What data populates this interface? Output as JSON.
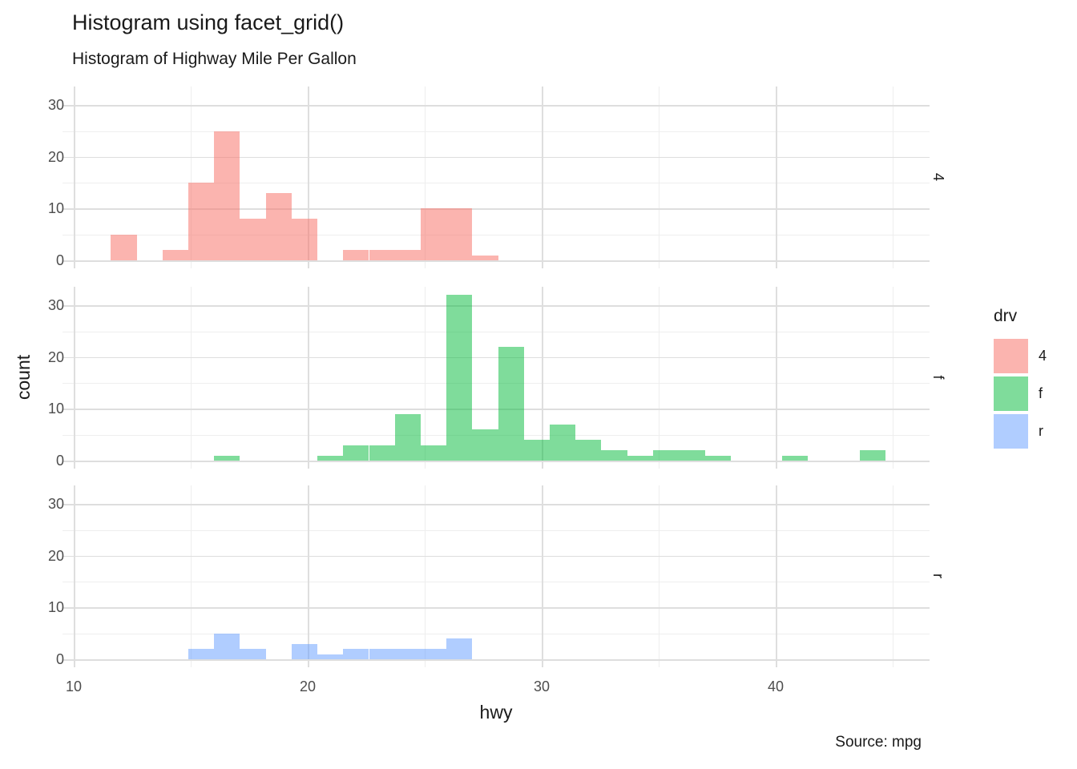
{
  "title": "Histogram using facet_grid()",
  "subtitle": "Histogram of Highway Mile Per Gallon",
  "caption": "Source: mpg",
  "x_axis": {
    "label": "hwy",
    "tick_labels": [
      "10",
      "20",
      "30",
      "40"
    ]
  },
  "y_axis": {
    "label": "count",
    "tick_labels": [
      "0",
      "10",
      "20",
      "30"
    ]
  },
  "facets": [
    {
      "label": "4"
    },
    {
      "label": "f"
    },
    {
      "label": "r"
    }
  ],
  "legend": {
    "title": "drv",
    "entries": [
      {
        "label": "4",
        "color": "rgba(248,118,109,0.55)"
      },
      {
        "label": "f",
        "color": "rgba(0,186,56,0.5)"
      },
      {
        "label": "r",
        "color": "rgba(97,156,255,0.5)"
      }
    ]
  },
  "colors": {
    "major_grid": "#DEDEDE",
    "minor_grid": "#EEEEEE",
    "tick_text": "#4D4D4D"
  },
  "chart_data": {
    "type": "bar",
    "subtype": "faceted-histogram",
    "title": "Histogram using facet_grid()",
    "subtitle": "Histogram of Highway Mile Per Gallon",
    "xlabel": "hwy",
    "ylabel": "count",
    "facet_variable": "drv",
    "x_ticks": [
      10,
      20,
      30,
      40
    ],
    "x_minor": [
      15,
      25,
      35,
      45
    ],
    "y_ticks": [
      0,
      10,
      20,
      30
    ],
    "y_minor": [
      5,
      15,
      25
    ],
    "xlim": [
      9.5,
      46.6
    ],
    "ylim": [
      0,
      33.6
    ],
    "binwidth": 1.1,
    "bins_format": "[bin_start_hwy, bin_end_hwy, count]",
    "grid": true,
    "legend_position": "right",
    "series": [
      {
        "name": "4",
        "color": "rgba(248,118,109,0.55)",
        "bins": [
          [
            11.59,
            12.69,
            5
          ],
          [
            13.79,
            14.9,
            2
          ],
          [
            14.9,
            16.0,
            15
          ],
          [
            16.0,
            17.1,
            25
          ],
          [
            17.1,
            18.21,
            8
          ],
          [
            18.21,
            19.31,
            13
          ],
          [
            19.31,
            20.41,
            8
          ],
          [
            21.52,
            22.62,
            2
          ],
          [
            22.62,
            23.72,
            2
          ],
          [
            23.72,
            24.83,
            2
          ],
          [
            24.83,
            25.93,
            10
          ],
          [
            25.93,
            27.03,
            10
          ],
          [
            27.03,
            28.14,
            1
          ]
        ]
      },
      {
        "name": "f",
        "color": "rgba(0,186,56,0.5)",
        "bins": [
          [
            16.0,
            17.1,
            1
          ],
          [
            20.41,
            21.52,
            1
          ],
          [
            21.52,
            22.62,
            3
          ],
          [
            22.62,
            23.72,
            3
          ],
          [
            23.72,
            24.83,
            9
          ],
          [
            24.83,
            25.93,
            3
          ],
          [
            25.93,
            27.03,
            32
          ],
          [
            27.03,
            28.14,
            6
          ],
          [
            28.14,
            29.24,
            22
          ],
          [
            29.24,
            30.34,
            4
          ],
          [
            30.34,
            31.45,
            7
          ],
          [
            31.45,
            32.55,
            4
          ],
          [
            32.55,
            33.66,
            2
          ],
          [
            33.66,
            34.76,
            1
          ],
          [
            34.76,
            35.86,
            2
          ],
          [
            35.86,
            36.97,
            2
          ],
          [
            36.97,
            38.07,
            1
          ],
          [
            40.28,
            41.38,
            1
          ],
          [
            43.59,
            44.69,
            2
          ]
        ]
      },
      {
        "name": "r",
        "color": "rgba(97,156,255,0.5)",
        "bins": [
          [
            14.9,
            16.0,
            2
          ],
          [
            16.0,
            17.1,
            5
          ],
          [
            17.1,
            18.21,
            2
          ],
          [
            19.31,
            20.41,
            3
          ],
          [
            20.41,
            21.52,
            1
          ],
          [
            21.52,
            22.62,
            2
          ],
          [
            22.62,
            23.72,
            2
          ],
          [
            23.72,
            24.83,
            2
          ],
          [
            24.83,
            25.93,
            2
          ],
          [
            25.93,
            27.03,
            4
          ]
        ]
      }
    ]
  }
}
